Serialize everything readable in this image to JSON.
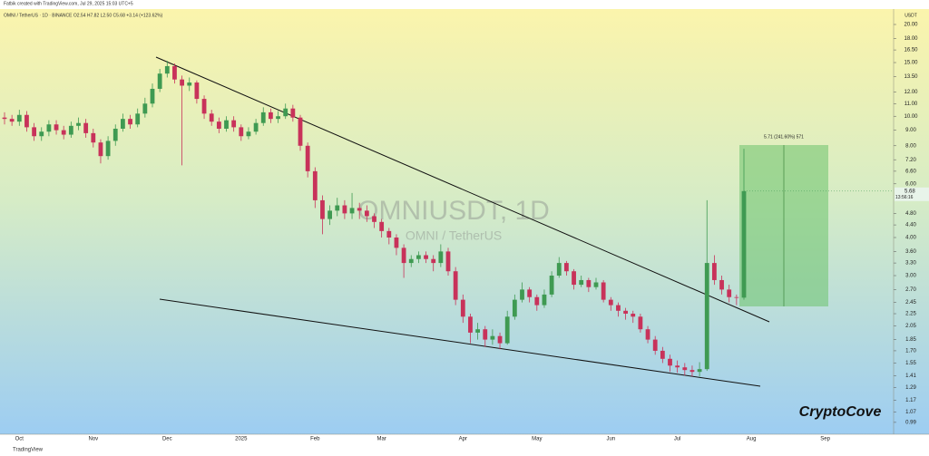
{
  "header": {
    "credit": "Fatbik created with TradingView.com, Jul 29, 2025 15:03 UTC+5",
    "symbol_line": "OMNI / TetherUS · 1D · BINANCE  O2.54  H7.82  L2.50  C5.68  +3.14 (+123.62%)",
    "brand": "CryptoCove",
    "footer": "TradingView",
    "countdown": "13:56:16",
    "position_label": "5.71 (241.60%) 571"
  },
  "chart_data": {
    "type": "candlestick",
    "title": "OMNIUSDT, 1D",
    "subtitle": "OMNI / TetherUS",
    "y_axis_label": "USDT",
    "log_scale": true,
    "grid": false,
    "up_color": "#3f9a52",
    "down_color": "#c8325a",
    "categories": [
      null,
      null,
      "Oct",
      null,
      null,
      null,
      null,
      null,
      null,
      null,
      null,
      null,
      "Nov",
      null,
      null,
      null,
      null,
      null,
      null,
      null,
      null,
      null,
      "Dec",
      null,
      null,
      null,
      null,
      null,
      null,
      null,
      null,
      null,
      "2025",
      null,
      null,
      null,
      null,
      null,
      null,
      null,
      null,
      null,
      "Feb",
      null,
      null,
      null,
      null,
      null,
      null,
      null,
      null,
      "Mar",
      null,
      null,
      null,
      null,
      null,
      null,
      null,
      null,
      null,
      null,
      "Apr",
      null,
      null,
      null,
      null,
      null,
      null,
      null,
      null,
      null,
      "May",
      null,
      null,
      null,
      null,
      null,
      null,
      null,
      null,
      null,
      "Jun",
      null,
      null,
      null,
      null,
      null,
      null,
      null,
      null,
      "Jul",
      null,
      null,
      null,
      null,
      null,
      null,
      null,
      null,
      null,
      "Aug",
      null,
      null,
      null,
      null,
      null,
      null,
      null,
      null,
      null,
      "Sep",
      null,
      null
    ],
    "open": [
      9.9,
      9.8,
      9.6,
      10.1,
      9.2,
      8.6,
      8.9,
      9.4,
      9.0,
      8.7,
      9.3,
      9.5,
      8.8,
      8.2,
      7.4,
      8.3,
      9.1,
      9.8,
      9.4,
      10.2,
      11.0,
      12.3,
      13.8,
      14.6,
      13.2,
      12.6,
      12.9,
      11.4,
      10.2,
      9.6,
      9.1,
      9.7,
      9.2,
      8.6,
      8.9,
      9.5,
      10.3,
      9.8,
      10.0,
      10.6,
      9.9,
      8.0,
      6.6,
      5.3,
      4.6,
      4.9,
      5.1,
      4.8,
      5.0,
      4.9,
      4.7,
      4.5,
      4.2,
      4.0,
      3.7,
      3.3,
      3.4,
      3.5,
      3.4,
      3.3,
      3.6,
      3.1,
      2.5,
      2.2,
      1.95,
      2.0,
      1.85,
      1.9,
      1.8,
      2.2,
      2.5,
      2.7,
      2.55,
      2.4,
      2.6,
      3.0,
      3.3,
      3.1,
      2.8,
      2.9,
      2.75,
      2.85,
      2.5,
      2.4,
      2.3,
      2.25,
      2.2,
      2.0,
      1.85,
      1.7,
      1.6,
      1.52,
      1.5,
      1.47,
      1.45,
      1.48,
      3.3,
      2.9,
      2.7,
      2.55,
      2.54,
      null,
      null,
      null,
      null,
      null,
      null,
      null,
      null,
      null,
      null,
      null,
      null,
      null
    ],
    "high": [
      10.3,
      10.1,
      10.5,
      10.4,
      9.5,
      9.2,
      9.7,
      9.7,
      9.3,
      9.6,
      9.9,
      9.8,
      9.1,
      8.4,
      8.6,
      9.4,
      10.2,
      10.1,
      10.6,
      11.5,
      12.8,
      14.3,
      15.2,
      14.9,
      13.6,
      13.4,
      13.1,
      11.7,
      10.5,
      9.9,
      10.0,
      10.0,
      9.4,
      9.2,
      9.8,
      10.7,
      10.6,
      10.4,
      11.0,
      10.9,
      10.1,
      8.2,
      6.8,
      5.5,
      5.1,
      5.4,
      5.3,
      5.6,
      5.2,
      5.1,
      4.8,
      4.6,
      4.3,
      4.1,
      3.8,
      3.5,
      3.6,
      3.6,
      3.5,
      3.8,
      3.7,
      3.2,
      2.6,
      2.25,
      2.1,
      2.05,
      2.0,
      1.95,
      2.3,
      2.6,
      2.85,
      2.75,
      2.6,
      2.7,
      3.1,
      3.45,
      3.35,
      3.15,
      3.0,
      2.95,
      2.95,
      2.9,
      2.55,
      2.45,
      2.35,
      2.3,
      2.25,
      2.05,
      1.9,
      1.75,
      1.65,
      1.58,
      1.55,
      1.52,
      1.56,
      5.3,
      3.5,
      3.0,
      2.8,
      2.6,
      7.82,
      null,
      null,
      null,
      null,
      null,
      null,
      null,
      null,
      null,
      null,
      null,
      null,
      null
    ],
    "low": [
      9.4,
      9.3,
      9.3,
      8.9,
      8.3,
      8.3,
      8.6,
      8.7,
      8.4,
      8.5,
      9.0,
      8.5,
      7.9,
      7.0,
      7.2,
      8.0,
      8.9,
      9.1,
      9.2,
      9.9,
      10.7,
      12.0,
      13.4,
      12.8,
      6.9,
      12.1,
      11.0,
      9.8,
      9.3,
      8.8,
      8.9,
      8.9,
      8.3,
      8.4,
      8.7,
      9.3,
      9.5,
      9.5,
      9.8,
      9.6,
      7.7,
      6.3,
      5.0,
      4.1,
      4.4,
      4.7,
      4.6,
      4.6,
      4.6,
      4.5,
      4.3,
      4.0,
      3.8,
      3.5,
      2.95,
      3.2,
      3.3,
      3.3,
      3.1,
      3.2,
      3.0,
      2.4,
      2.1,
      1.8,
      1.85,
      1.75,
      1.78,
      1.72,
      1.78,
      2.15,
      2.45,
      2.45,
      2.3,
      2.35,
      2.55,
      2.95,
      3.0,
      2.7,
      2.75,
      2.65,
      2.7,
      2.45,
      2.3,
      2.2,
      2.15,
      2.1,
      1.95,
      1.8,
      1.65,
      1.55,
      1.45,
      1.44,
      1.41,
      1.4,
      1.4,
      1.46,
      2.8,
      2.6,
      2.45,
      2.4,
      2.5,
      null,
      null,
      null,
      null,
      null,
      null,
      null,
      null,
      null,
      null,
      null,
      null,
      null
    ],
    "close": [
      9.8,
      9.6,
      10.1,
      9.2,
      8.6,
      8.9,
      9.4,
      9.0,
      8.7,
      9.3,
      9.5,
      8.8,
      8.2,
      7.4,
      8.3,
      9.1,
      9.8,
      9.4,
      10.2,
      11.0,
      12.3,
      13.8,
      14.6,
      13.2,
      12.6,
      12.9,
      11.4,
      10.2,
      9.6,
      9.1,
      9.7,
      9.2,
      8.6,
      8.9,
      9.5,
      10.3,
      9.8,
      10.0,
      10.6,
      9.9,
      8.0,
      6.6,
      5.3,
      4.6,
      4.9,
      5.1,
      4.8,
      5.0,
      4.9,
      4.7,
      4.5,
      4.2,
      4.0,
      3.7,
      3.3,
      3.4,
      3.5,
      3.4,
      3.3,
      3.6,
      3.1,
      2.5,
      2.2,
      1.95,
      2.0,
      1.85,
      1.9,
      1.8,
      2.2,
      2.5,
      2.7,
      2.55,
      2.4,
      2.6,
      3.0,
      3.3,
      3.1,
      2.8,
      2.9,
      2.75,
      2.85,
      2.5,
      2.4,
      2.3,
      2.25,
      2.2,
      2.0,
      1.85,
      1.7,
      1.6,
      1.52,
      1.5,
      1.47,
      1.45,
      1.48,
      3.3,
      2.9,
      2.7,
      2.55,
      2.54,
      5.68,
      null,
      null,
      null,
      null,
      null,
      null,
      null,
      null,
      null,
      null,
      null,
      null,
      null
    ],
    "ylim": [
      0.905,
      22.47
    ],
    "yticks": [
      {
        "value": 20,
        "label": "20.00"
      },
      {
        "value": 18,
        "label": "18.00"
      },
      {
        "value": 16.5,
        "label": "16.50"
      },
      {
        "value": 15,
        "label": "15.00"
      },
      {
        "value": 13.5,
        "label": "13.50"
      },
      {
        "value": 12,
        "label": "12.00"
      },
      {
        "value": 11,
        "label": "11.00"
      },
      {
        "value": 10,
        "label": "10.00"
      },
      {
        "value": 9,
        "label": "9.00"
      },
      {
        "value": 8,
        "label": "8.00"
      },
      {
        "value": 7.2,
        "label": "7.20"
      },
      {
        "value": 6.6,
        "label": "6.60"
      },
      {
        "value": 6,
        "label": "6.00"
      },
      {
        "value": 4.8,
        "label": "4.80"
      },
      {
        "value": 4.4,
        "label": "4.40"
      },
      {
        "value": 4,
        "label": "4.00"
      },
      {
        "value": 3.6,
        "label": "3.60"
      },
      {
        "value": 3.3,
        "label": "3.30"
      },
      {
        "value": 3,
        "label": "3.00"
      },
      {
        "value": 2.7,
        "label": "2.70"
      },
      2.45,
      2.25,
      2.05,
      1.85,
      {
        "value": 1.7,
        "label": "1.70"
      },
      1.55,
      1.41,
      1.29,
      1.17,
      1.07,
      0.99
    ]
  }
}
